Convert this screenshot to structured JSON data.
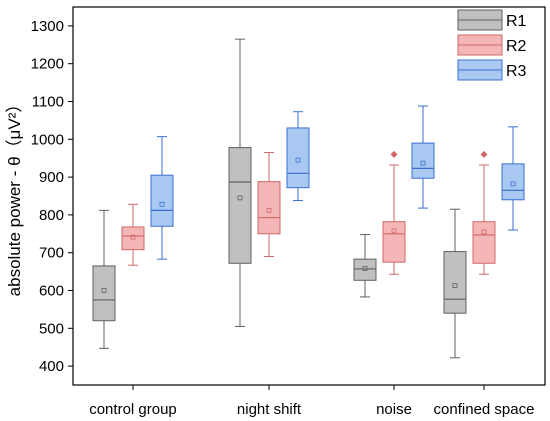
{
  "chart_data": {
    "type": "box",
    "title": "",
    "xlabel": "",
    "ylabel": "absolute power - θ（μV²）",
    "ylim": [
      350,
      1350
    ],
    "yticks": [
      400,
      500,
      600,
      700,
      800,
      900,
      1000,
      1100,
      1200,
      1300
    ],
    "categories": [
      "control group",
      "night shift",
      "noise",
      "confined space"
    ],
    "legend_position": "top-right",
    "series": [
      {
        "name": "R1",
        "color": "#c0c0c0",
        "edge": "#606060",
        "boxes": [
          {
            "min": 447,
            "q1": 520,
            "median": 575,
            "q3": 665,
            "max": 812,
            "mean": 600,
            "outliers": []
          },
          {
            "min": 505,
            "q1": 672,
            "median": 887,
            "q3": 978,
            "max": 1265,
            "mean": 845,
            "outliers": []
          },
          {
            "min": 583,
            "q1": 627,
            "median": 657,
            "q3": 683,
            "max": 748,
            "mean": 658,
            "outliers": []
          },
          {
            "min": 422,
            "q1": 540,
            "median": 577,
            "q3": 703,
            "max": 815,
            "mean": 613,
            "outliers": []
          }
        ]
      },
      {
        "name": "R2",
        "color": "#f4b6b6",
        "edge": "#d06868",
        "boxes": [
          {
            "min": 667,
            "q1": 708,
            "median": 744,
            "q3": 768,
            "max": 828,
            "mean": 741,
            "outliers": []
          },
          {
            "min": 690,
            "q1": 750,
            "median": 793,
            "q3": 888,
            "max": 965,
            "mean": 812,
            "outliers": []
          },
          {
            "min": 643,
            "q1": 675,
            "median": 750,
            "q3": 782,
            "max": 932,
            "mean": 758,
            "outliers": [
              960
            ]
          },
          {
            "min": 643,
            "q1": 672,
            "median": 747,
            "q3": 782,
            "max": 932,
            "mean": 755,
            "outliers": [
              960
            ]
          }
        ]
      },
      {
        "name": "R3",
        "color": "#a9c9f2",
        "edge": "#3a6fd0",
        "boxes": [
          {
            "min": 683,
            "q1": 770,
            "median": 812,
            "q3": 905,
            "max": 1007,
            "mean": 828,
            "outliers": []
          },
          {
            "min": 838,
            "q1": 872,
            "median": 910,
            "q3": 1030,
            "max": 1073,
            "mean": 945,
            "outliers": []
          },
          {
            "min": 818,
            "q1": 897,
            "median": 923,
            "q3": 990,
            "max": 1088,
            "mean": 937,
            "outliers": []
          },
          {
            "min": 760,
            "q1": 840,
            "median": 865,
            "q3": 935,
            "max": 1033,
            "mean": 882,
            "outliers": []
          }
        ]
      }
    ]
  }
}
